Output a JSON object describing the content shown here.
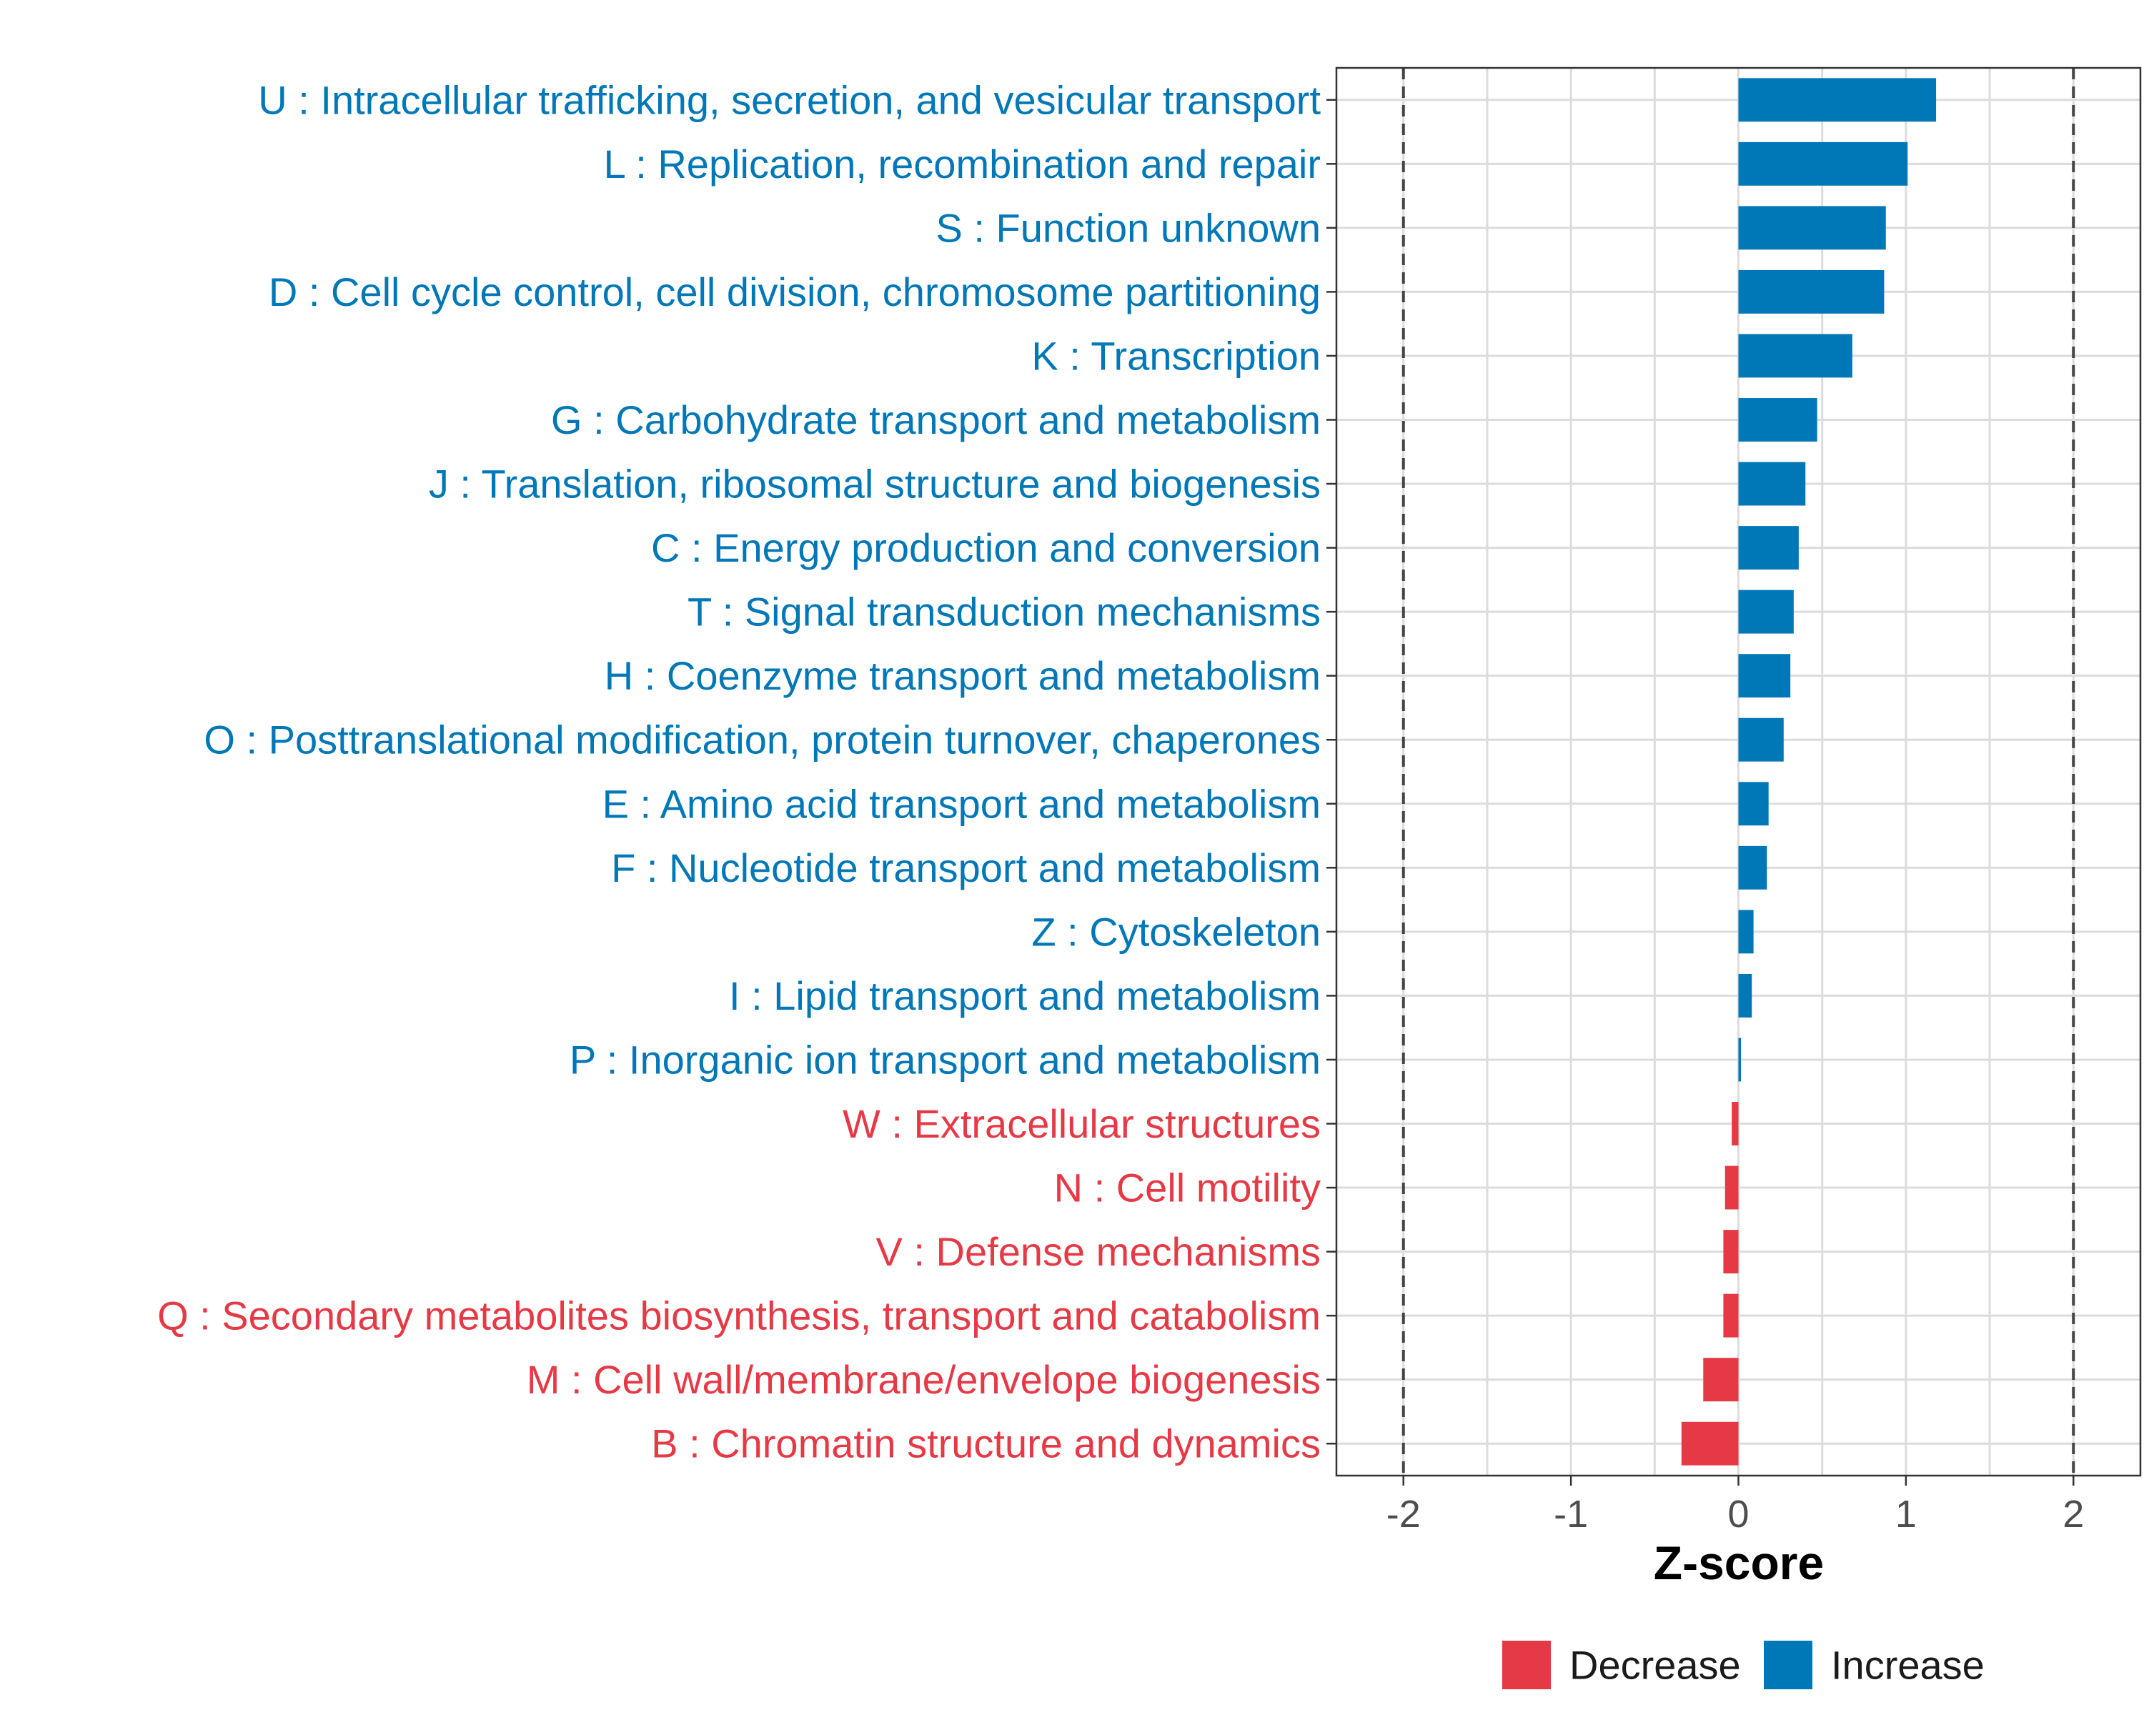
{
  "chart_data": {
    "type": "bar",
    "orientation": "horizontal",
    "xlabel": "Z-score",
    "xlim": [
      -2.4,
      2.4
    ],
    "xticks": [
      -2,
      -1,
      0,
      1,
      2
    ],
    "xtick_labels": [
      "-2",
      "-1",
      "0",
      "1",
      "2"
    ],
    "reference_lines": [
      -2,
      2
    ],
    "grid": true,
    "categories": [
      "U : Intracellular trafficking, secretion, and vesicular transport",
      "L : Replication, recombination and repair",
      "S : Function unknown",
      "D : Cell cycle control, cell division, chromosome partitioning",
      "K : Transcription",
      "G : Carbohydrate transport and metabolism",
      "J : Translation, ribosomal structure and biogenesis",
      "C : Energy production and conversion",
      "T : Signal transduction mechanisms",
      "H : Coenzyme transport and metabolism",
      "O : Posttranslational modification, protein turnover, chaperones",
      "E : Amino acid transport and metabolism",
      "F : Nucleotide transport and metabolism",
      "Z : Cytoskeleton",
      "I : Lipid transport and metabolism",
      "P : Inorganic ion transport and metabolism",
      "W : Extracellular structures",
      "N : Cell motility",
      "V : Defense mechanisms",
      "Q : Secondary metabolites biosynthesis, transport and catabolism",
      "M : Cell wall/membrane/envelope biogenesis",
      "B : Chromatin structure and dynamics"
    ],
    "values": [
      1.18,
      1.01,
      0.88,
      0.87,
      0.68,
      0.47,
      0.4,
      0.36,
      0.33,
      0.31,
      0.27,
      0.18,
      0.17,
      0.09,
      0.08,
      0.015,
      -0.04,
      -0.08,
      -0.09,
      -0.09,
      -0.21,
      -0.34
    ],
    "groups": [
      "Increase",
      "Increase",
      "Increase",
      "Increase",
      "Increase",
      "Increase",
      "Increase",
      "Increase",
      "Increase",
      "Increase",
      "Increase",
      "Increase",
      "Increase",
      "Increase",
      "Increase",
      "Increase",
      "Decrease",
      "Decrease",
      "Decrease",
      "Decrease",
      "Decrease",
      "Decrease"
    ],
    "legend": {
      "position": "bottom",
      "items": [
        {
          "label": "Decrease",
          "color": "#E63946"
        },
        {
          "label": "Increase",
          "color": "#0077B6"
        }
      ]
    }
  }
}
